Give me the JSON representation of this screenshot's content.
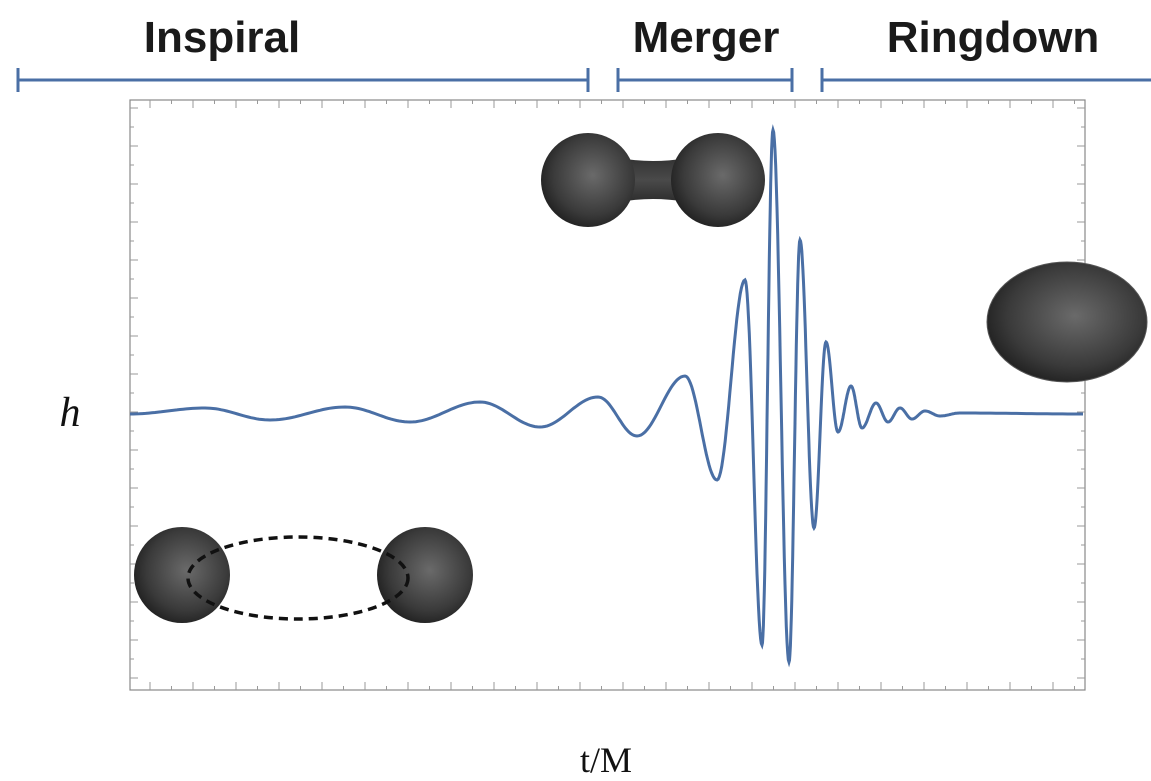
{
  "phases": [
    {
      "label": "Inspiral"
    },
    {
      "label": "Merger"
    },
    {
      "label": "Ringdown"
    }
  ],
  "axes": {
    "y_label": "h",
    "x_label": "t/M"
  }
}
